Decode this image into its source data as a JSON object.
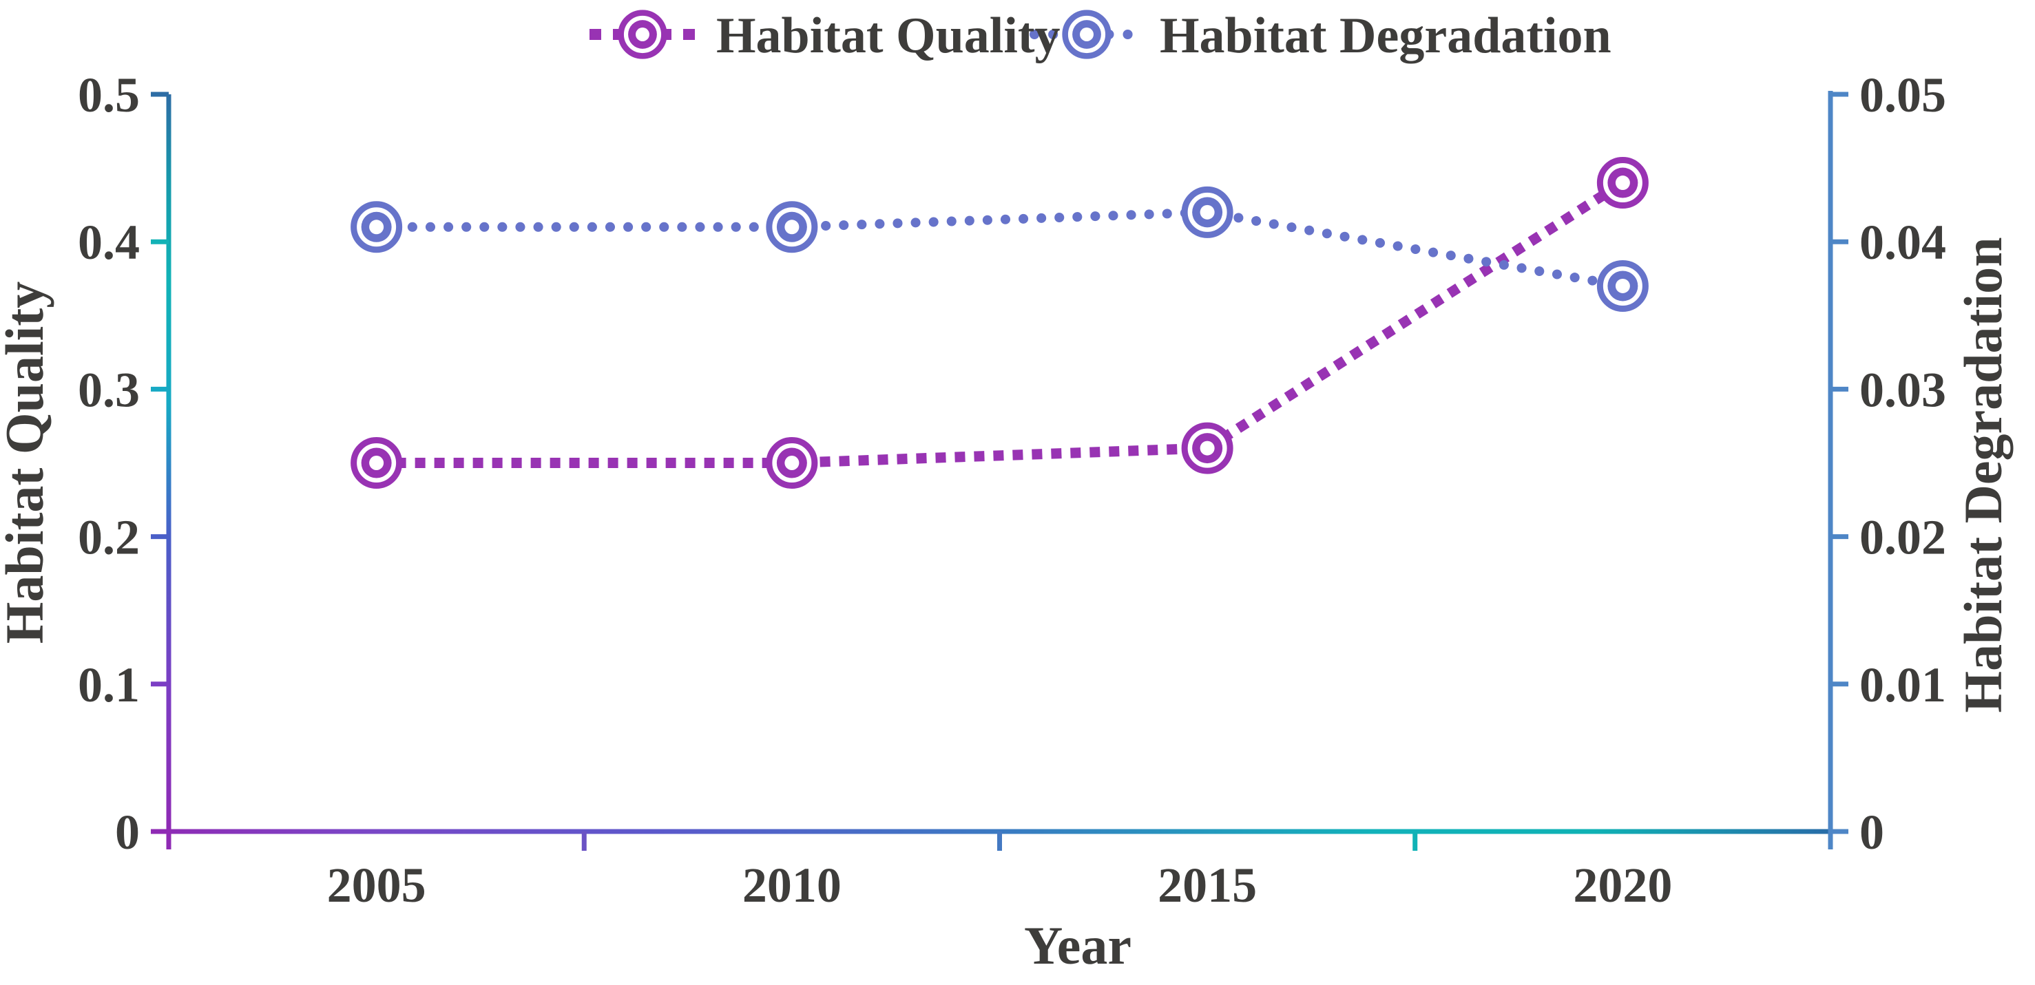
{
  "chart_data": {
    "type": "line",
    "title": "",
    "categories": [
      "2005",
      "2010",
      "2015",
      "2020"
    ],
    "xlabel": "Year",
    "series": [
      {
        "name": "Habitat Quality",
        "axis": "left",
        "values": [
          0.25,
          0.25,
          0.26,
          0.44
        ],
        "color": "#9833b3",
        "line_style": "dotted-square",
        "marker": "ring-donut"
      },
      {
        "name": "Habitat Degradation",
        "axis": "right",
        "values": [
          0.041,
          0.041,
          0.042,
          0.037
        ],
        "color": "#6673ca",
        "line_style": "dotted-round",
        "marker": "ring-donut"
      }
    ],
    "left_axis": {
      "label": "Habitat Quality",
      "min": 0,
      "max": 0.5,
      "tick_values": [
        0,
        0.1,
        0.2,
        0.3,
        0.4,
        0.5
      ],
      "tick_labels": [
        "0",
        "0.1",
        "0.2",
        "0.3",
        "0.4",
        "0.5"
      ]
    },
    "right_axis": {
      "label": "Habitat Degradation",
      "min": 0,
      "max": 0.05,
      "tick_values": [
        0,
        0.01,
        0.02,
        0.03,
        0.04,
        0.05
      ],
      "tick_labels": [
        "0",
        "0.01",
        "0.02",
        "0.03",
        "0.04",
        "0.05"
      ]
    },
    "legend": {
      "position": "top",
      "items": [
        "Habitat Quality",
        "Habitat Degradation"
      ]
    },
    "grid": false
  },
  "chart_style": {
    "text_color": "#3e3d3b",
    "background": "#ffffff",
    "right_axis_color": "#4e86c6",
    "left_axis_gradient": [
      {
        "offset": 0.0,
        "color": "#2d6da5"
      },
      {
        "offset": 0.12,
        "color": "#169aab"
      },
      {
        "offset": 0.25,
        "color": "#12b2b6"
      },
      {
        "offset": 0.42,
        "color": "#17a9c4"
      },
      {
        "offset": 0.6,
        "color": "#4a5fc8"
      },
      {
        "offset": 0.8,
        "color": "#7b3ec4"
      },
      {
        "offset": 1.0,
        "color": "#8f2ab4"
      }
    ],
    "x_axis_gradient": [
      {
        "offset": 0.0,
        "color": "#8f2ab4"
      },
      {
        "offset": 0.12,
        "color": "#7b46c6"
      },
      {
        "offset": 0.3,
        "color": "#5b59cb"
      },
      {
        "offset": 0.5,
        "color": "#3b7ac2"
      },
      {
        "offset": 0.72,
        "color": "#12b2ba"
      },
      {
        "offset": 0.85,
        "color": "#0fb2b4"
      },
      {
        "offset": 1.0,
        "color": "#2a67a7"
      }
    ],
    "left_tick_colors": [
      "#8f2ab4",
      "#7b3ec4",
      "#4a5fc8",
      "#17a9c4",
      "#12b2b6",
      "#2d6da5"
    ],
    "x_boundary_tick_colors": [
      "#6a52c4",
      "#4479c2",
      "#10b2b6"
    ]
  }
}
